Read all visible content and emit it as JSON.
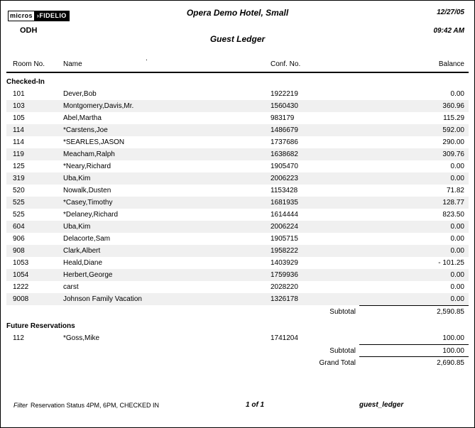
{
  "page": {
    "logo": {
      "micros": "micros",
      "fidelio": "›FIDELIO"
    },
    "property_code": "ODH",
    "hotel_name": "Opera Demo Hotel, Small",
    "report_title": "Guest Ledger",
    "date": "12/27/05",
    "time": "09:42 AM",
    "stray_mark": "."
  },
  "table": {
    "columns": [
      "Room No.",
      "Name",
      "Conf. No.",
      "Balance"
    ],
    "sections": [
      {
        "title": "Checked-In",
        "rows": [
          {
            "room": "101",
            "name": "Dever,Bob",
            "conf": "1922219",
            "balance": "0.00"
          },
          {
            "room": "103",
            "name": "Montgomery,Davis,Mr.",
            "conf": "1560430",
            "balance": "360.96"
          },
          {
            "room": "105",
            "name": "Abel,Martha",
            "conf": "983179",
            "balance": "115.29"
          },
          {
            "room": "114",
            "name": "*Carstens,Joe",
            "conf": "1486679",
            "balance": "592.00"
          },
          {
            "room": "114",
            "name": "*SEARLES,JASON",
            "conf": "1737686",
            "balance": "290.00"
          },
          {
            "room": "119",
            "name": "Meacham,Ralph",
            "conf": "1638682",
            "balance": "309.76"
          },
          {
            "room": "125",
            "name": "*Neary,Richard",
            "conf": "1905470",
            "balance": "0.00"
          },
          {
            "room": "319",
            "name": "Uba,Kim",
            "conf": "2006223",
            "balance": "0.00"
          },
          {
            "room": "520",
            "name": "Nowalk,Dusten",
            "conf": "1153428",
            "balance": "71.82"
          },
          {
            "room": "525",
            "name": "*Casey,Timothy",
            "conf": "1681935",
            "balance": "128.77"
          },
          {
            "room": "525",
            "name": "*Delaney,Richard",
            "conf": "1614444",
            "balance": "823.50"
          },
          {
            "room": "604",
            "name": "Uba,Kim",
            "conf": "2006224",
            "balance": "0.00"
          },
          {
            "room": "906",
            "name": "Delacorte,Sam",
            "conf": "1905715",
            "balance": "0.00"
          },
          {
            "room": "908",
            "name": "Clark,Albert",
            "conf": "1958222",
            "balance": "0.00"
          },
          {
            "room": "1053",
            "name": "Heald,Diane",
            "conf": "1403929",
            "balance": "- 101.25"
          },
          {
            "room": "1054",
            "name": "Herbert,George",
            "conf": "1759936",
            "balance": "0.00"
          },
          {
            "room": "1222",
            "name": "carst",
            "conf": "2028220",
            "balance": "0.00"
          },
          {
            "room": "9008",
            "name": "Johnson Family Vacation",
            "conf": "1326178",
            "balance": "0.00"
          }
        ],
        "subtotal_label": "Subtotal",
        "subtotal": "2,590.85"
      },
      {
        "title": "Future Reservations",
        "rows": [
          {
            "room": "112",
            "name": "*Goss,Mike",
            "conf": "1741204",
            "balance": "100.00"
          }
        ],
        "subtotal_label": "Subtotal",
        "subtotal": "100.00"
      }
    ],
    "grand_total_label": "Grand Total",
    "grand_total": "2,690.85"
  },
  "footer": {
    "filter_label": "Filter",
    "filter_value": "Reservation Status 4PM, 6PM, CHECKED IN",
    "page_info": "1 of 1",
    "report_file": "guest_ledger"
  },
  "colors": {
    "stripe": "#f0f0f0",
    "text": "#000000",
    "rule": "#000000"
  }
}
